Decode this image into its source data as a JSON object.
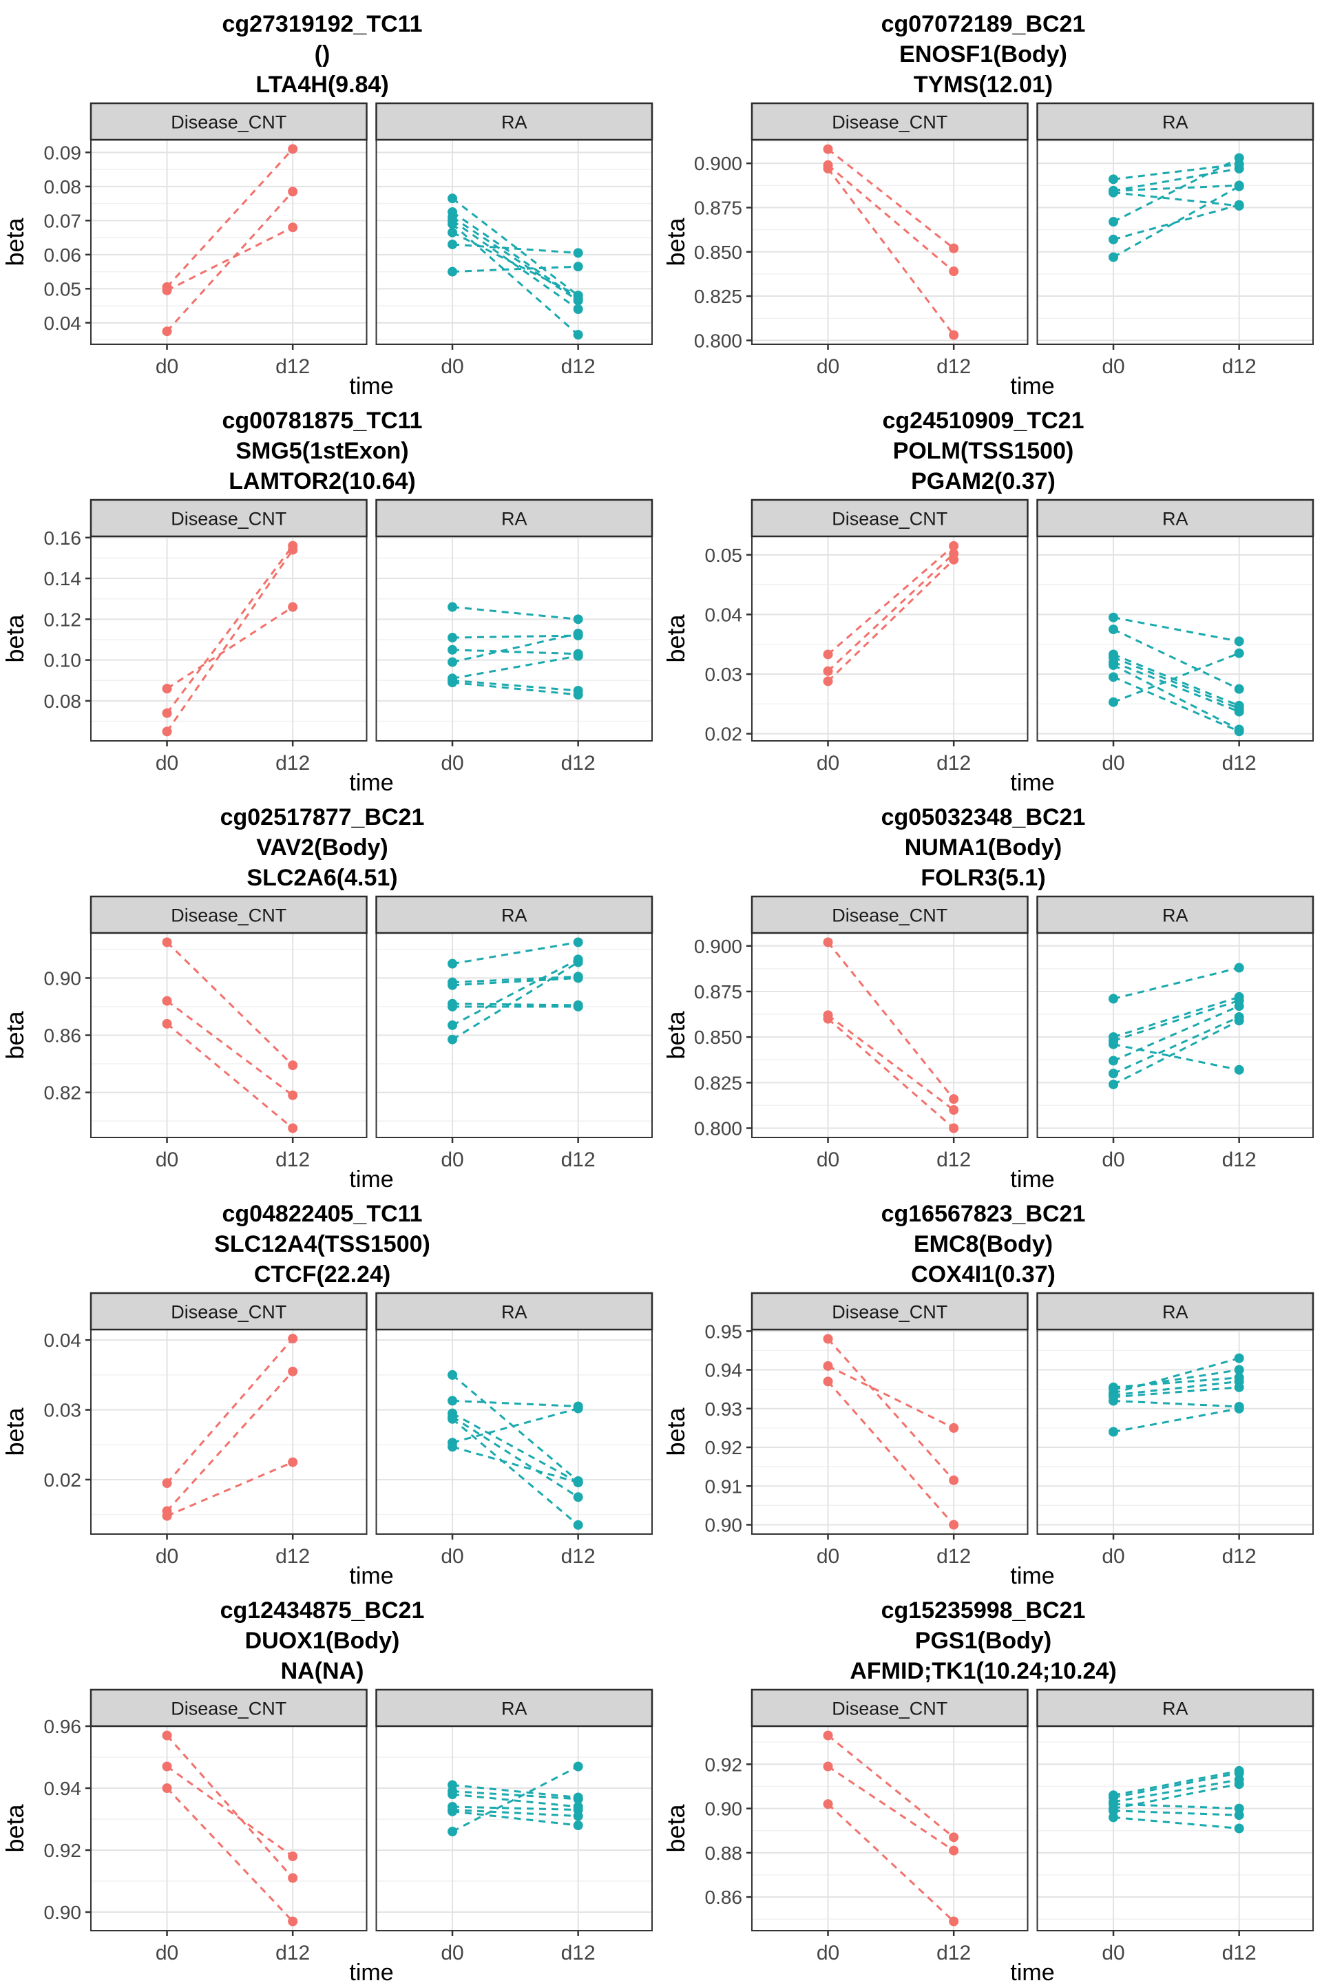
{
  "ui": {
    "background": "#ffffff",
    "colors": {
      "disease_cnt_series": "#F2716B",
      "ra_series": "#1AA9AE",
      "strip_fill": "#D5D5D5",
      "strip_border": "#2B2B2B",
      "panel_border": "#333333",
      "panel_fill": "#FFFFFF",
      "grid_major": "#E3E3E3",
      "grid_minor": "#F1F1F1",
      "axis_text": "#454545",
      "tick_mark": "#333333",
      "title_text": "#000000"
    }
  },
  "chart_data": {
    "type": "line",
    "subtype": "paired-slope-facet",
    "xlabel": "time",
    "ylabel": "beta",
    "x_categories": [
      "d0",
      "d12"
    ],
    "facets": [
      "Disease_CNT",
      "RA"
    ],
    "legend_position": "none",
    "grid": true,
    "charts": [
      {
        "title_lines": [
          "cg27319192_TC11",
          "()",
          "LTA4H(9.84)"
        ],
        "ylim": [
          0.0337,
          0.0937
        ],
        "y_major": [
          0.04,
          0.05,
          0.06,
          0.07,
          0.08,
          0.09
        ],
        "y_major_labels": [
          "0.04",
          "0.05",
          "0.06",
          "0.07",
          "0.08",
          "0.09"
        ],
        "y_minor": [
          0.035,
          0.045,
          0.055,
          0.065,
          0.075,
          0.085
        ],
        "series": {
          "Disease_CNT": [
            [
              0.0505,
              0.091
            ],
            [
              0.0495,
              0.068
            ],
            [
              0.0375,
              0.0785
            ]
          ],
          "RA": [
            [
              0.0765,
              0.048
            ],
            [
              0.0725,
              0.047
            ],
            [
              0.071,
              0.0465
            ],
            [
              0.07,
              0.044
            ],
            [
              0.069,
              0.0365
            ],
            [
              0.0665,
              0.048
            ],
            [
              0.063,
              0.0605
            ],
            [
              0.055,
              0.0565
            ]
          ]
        }
      },
      {
        "title_lines": [
          "cg07072189_BC21",
          "ENOSF1(Body)",
          "TYMS(12.01)"
        ],
        "ylim": [
          0.7978,
          0.9133
        ],
        "y_major": [
          0.8,
          0.825,
          0.85,
          0.875,
          0.9
        ],
        "y_major_labels": [
          "0.800",
          "0.825",
          "0.850",
          "0.875",
          "0.900"
        ],
        "y_minor": [
          0.8125,
          0.8375,
          0.8625,
          0.8875,
          0.9125
        ],
        "series": {
          "Disease_CNT": [
            [
              0.908,
              0.852
            ],
            [
              0.899,
              0.839
            ],
            [
              0.897,
              0.803
            ]
          ],
          "RA": [
            [
              0.891,
              0.8995
            ],
            [
              0.8845,
              0.897
            ],
            [
              0.8845,
              0.8875
            ],
            [
              0.8835,
              0.876
            ],
            [
              0.867,
              0.903
            ],
            [
              0.857,
              0.8765
            ],
            [
              0.847,
              0.887
            ]
          ]
        }
      },
      {
        "title_lines": [
          "cg00781875_TC11",
          "SMG5(1stExon)",
          "LAMTOR2(10.64)"
        ],
        "ylim": [
          0.0604,
          0.1606
        ],
        "y_major": [
          0.08,
          0.1,
          0.12,
          0.14,
          0.16
        ],
        "y_major_labels": [
          "0.08",
          "0.10",
          "0.12",
          "0.14",
          "0.16"
        ],
        "y_minor": [
          0.07,
          0.09,
          0.11,
          0.13,
          0.15
        ],
        "series": {
          "Disease_CNT": [
            [
              0.086,
              0.126
            ],
            [
              0.074,
              0.156
            ],
            [
              0.065,
              0.154
            ]
          ],
          "RA": [
            [
              0.126,
              0.12
            ],
            [
              0.111,
              0.112
            ],
            [
              0.105,
              0.103
            ],
            [
              0.099,
              0.113
            ],
            [
              0.091,
              0.102
            ],
            [
              0.09,
              0.085
            ],
            [
              0.089,
              0.083
            ]
          ]
        }
      },
      {
        "title_lines": [
          "cg24510909_TC21",
          "POLM(TSS1500)",
          "PGAM2(0.37)"
        ],
        "ylim": [
          0.0188,
          0.0531
        ],
        "y_major": [
          0.02,
          0.03,
          0.04,
          0.05
        ],
        "y_major_labels": [
          "0.02",
          "0.03",
          "0.04",
          "0.05"
        ],
        "y_minor": [
          0.025,
          0.035,
          0.045
        ],
        "series": {
          "Disease_CNT": [
            [
              0.0333,
              0.0515
            ],
            [
              0.0305,
              0.0502
            ],
            [
              0.0288,
              0.0492
            ]
          ],
          "RA": [
            [
              0.0395,
              0.0355
            ],
            [
              0.0375,
              0.0275
            ],
            [
              0.0333,
              0.0247
            ],
            [
              0.0328,
              0.0242
            ],
            [
              0.032,
              0.0237
            ],
            [
              0.0315,
              0.0207
            ],
            [
              0.0295,
              0.0204
            ],
            [
              0.0253,
              0.0335
            ]
          ]
        }
      },
      {
        "title_lines": [
          "cg02517877_BC21",
          "VAV2(Body)",
          "SLC2A6(4.51)"
        ],
        "ylim": [
          0.7885,
          0.9315
        ],
        "y_major": [
          0.82,
          0.86,
          0.9
        ],
        "y_major_labels": [
          "0.82",
          "0.86",
          "0.90"
        ],
        "y_minor": [
          0.8,
          0.84,
          0.88,
          0.92
        ],
        "series": {
          "Disease_CNT": [
            [
              0.925,
              0.839
            ],
            [
              0.884,
              0.818
            ],
            [
              0.868,
              0.795
            ]
          ],
          "RA": [
            [
              0.91,
              0.925
            ],
            [
              0.897,
              0.901
            ],
            [
              0.895,
              0.9
            ],
            [
              0.882,
              0.881
            ],
            [
              0.88,
              0.88
            ],
            [
              0.867,
              0.913
            ],
            [
              0.857,
              0.911
            ]
          ]
        }
      },
      {
        "title_lines": [
          "cg05032348_BC21",
          "NUMA1(Body)",
          "FOLR3(5.1)"
        ],
        "ylim": [
          0.7949,
          0.9071
        ],
        "y_major": [
          0.8,
          0.825,
          0.85,
          0.875,
          0.9
        ],
        "y_major_labels": [
          "0.800",
          "0.825",
          "0.850",
          "0.875",
          "0.900"
        ],
        "y_minor": [
          0.8125,
          0.8375,
          0.8625,
          0.8875
        ],
        "series": {
          "Disease_CNT": [
            [
              0.902,
              0.816
            ],
            [
              0.862,
              0.81
            ],
            [
              0.86,
              0.8
            ]
          ],
          "RA": [
            [
              0.871,
              0.888
            ],
            [
              0.85,
              0.872
            ],
            [
              0.848,
              0.87
            ],
            [
              0.846,
              0.832
            ],
            [
              0.837,
              0.867
            ],
            [
              0.83,
              0.861
            ],
            [
              0.824,
              0.859
            ]
          ]
        }
      },
      {
        "title_lines": [
          "cg04822405_TC11",
          "SLC12A4(TSS1500)",
          "CTCF(22.24)"
        ],
        "ylim": [
          0.0122,
          0.0415
        ],
        "y_major": [
          0.02,
          0.03,
          0.04
        ],
        "y_major_labels": [
          "0.02",
          "0.03",
          "0.04"
        ],
        "y_minor": [
          0.015,
          0.025,
          0.035
        ],
        "series": {
          "Disease_CNT": [
            [
              0.0195,
              0.0402
            ],
            [
              0.0155,
              0.0355
            ],
            [
              0.0148,
              0.0225
            ]
          ],
          "RA": [
            [
              0.035,
              0.0198
            ],
            [
              0.0313,
              0.0305
            ],
            [
              0.0295,
              0.0196
            ],
            [
              0.029,
              0.0175
            ],
            [
              0.0287,
              0.0135
            ],
            [
              0.0253,
              0.0302
            ],
            [
              0.0247,
              0.0196
            ]
          ]
        }
      },
      {
        "title_lines": [
          "cg16567823_BC21",
          "EMC8(Body)",
          "COX4I1(0.37)"
        ],
        "ylim": [
          0.8976,
          0.9504
        ],
        "y_major": [
          0.9,
          0.91,
          0.92,
          0.93,
          0.94,
          0.95
        ],
        "y_major_labels": [
          "0.90",
          "0.91",
          "0.92",
          "0.93",
          "0.94",
          "0.95"
        ],
        "y_minor": [
          0.905,
          0.915,
          0.925,
          0.935,
          0.945
        ],
        "series": {
          "Disease_CNT": [
            [
              0.948,
              0.9115
            ],
            [
              0.941,
              0.925
            ],
            [
              0.937,
              0.9
            ]
          ],
          "RA": [
            [
              0.9355,
              0.938
            ],
            [
              0.935,
              0.94
            ],
            [
              0.934,
              0.943
            ],
            [
              0.9335,
              0.937
            ],
            [
              0.933,
              0.9355
            ],
            [
              0.932,
              0.9305
            ],
            [
              0.924,
              0.93
            ]
          ]
        }
      },
      {
        "title_lines": [
          "cg12434875_BC21",
          "DUOX1(Body)",
          "NA(NA)"
        ],
        "ylim": [
          0.894,
          0.96
        ],
        "y_major": [
          0.9,
          0.92,
          0.94,
          0.96
        ],
        "y_major_labels": [
          "0.90",
          "0.92",
          "0.94",
          "0.96"
        ],
        "y_minor": [
          0.91,
          0.93,
          0.95
        ],
        "series": {
          "Disease_CNT": [
            [
              0.957,
              0.911
            ],
            [
              0.947,
              0.918
            ],
            [
              0.94,
              0.897
            ]
          ],
          "RA": [
            [
              0.941,
              0.937
            ],
            [
              0.939,
              0.9365
            ],
            [
              0.938,
              0.934
            ],
            [
              0.934,
              0.933
            ],
            [
              0.933,
              0.931
            ],
            [
              0.9325,
              0.928
            ],
            [
              0.926,
              0.947
            ]
          ]
        }
      },
      {
        "title_lines": [
          "cg15235998_BC21",
          "PGS1(Body)",
          "AFMID;TK1(10.24;10.24)"
        ],
        "ylim": [
          0.8448,
          0.9372
        ],
        "y_major": [
          0.86,
          0.88,
          0.9,
          0.92
        ],
        "y_major_labels": [
          "0.86",
          "0.88",
          "0.90",
          "0.92"
        ],
        "y_minor": [
          0.85,
          0.87,
          0.89,
          0.91,
          0.93
        ],
        "series": {
          "Disease_CNT": [
            [
              0.933,
              0.887
            ],
            [
              0.919,
              0.881
            ],
            [
              0.902,
              0.849
            ]
          ],
          "RA": [
            [
              0.906,
              0.917
            ],
            [
              0.905,
              0.916
            ],
            [
              0.903,
              0.913
            ],
            [
              0.902,
              0.9
            ],
            [
              0.9,
              0.911
            ],
            [
              0.899,
              0.897
            ],
            [
              0.896,
              0.891
            ]
          ]
        }
      }
    ]
  }
}
